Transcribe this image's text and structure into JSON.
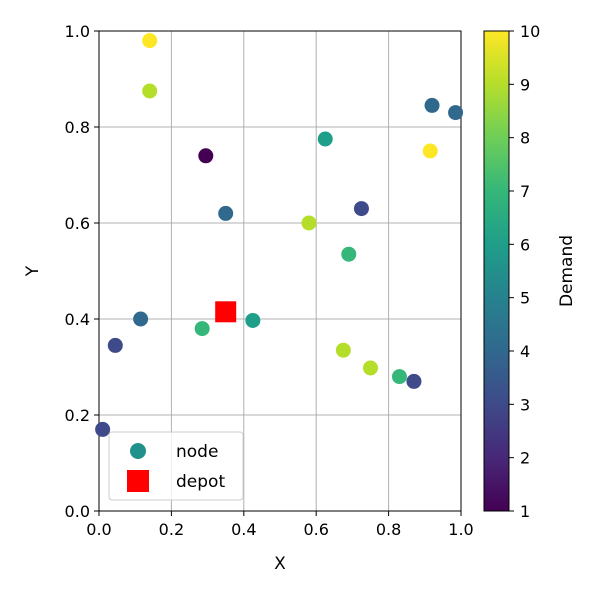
{
  "chart_data": {
    "type": "scatter",
    "title": "",
    "xlabel": "X",
    "ylabel": "Y",
    "xlim": [
      0.0,
      1.0
    ],
    "ylim": [
      0.0,
      1.0
    ],
    "xticks": [
      "0.0",
      "0.2",
      "0.4",
      "0.6",
      "0.8",
      "1.0"
    ],
    "yticks": [
      "0.0",
      "0.2",
      "0.4",
      "0.6",
      "0.8",
      "1.0"
    ],
    "grid": true,
    "legend_position": "lower-left",
    "series": [
      {
        "name": "node",
        "marker": "circle",
        "color_by": "demand",
        "points": [
          {
            "x": 0.14,
            "y": 0.98,
            "demand": 10
          },
          {
            "x": 0.14,
            "y": 0.875,
            "demand": 9
          },
          {
            "x": 0.295,
            "y": 0.74,
            "demand": 1
          },
          {
            "x": 0.35,
            "y": 0.62,
            "demand": 4
          },
          {
            "x": 0.625,
            "y": 0.775,
            "demand": 6
          },
          {
            "x": 0.58,
            "y": 0.6,
            "demand": 9
          },
          {
            "x": 0.725,
            "y": 0.63,
            "demand": 3
          },
          {
            "x": 0.69,
            "y": 0.535,
            "demand": 7
          },
          {
            "x": 0.92,
            "y": 0.845,
            "demand": 4
          },
          {
            "x": 0.985,
            "y": 0.83,
            "demand": 4
          },
          {
            "x": 0.915,
            "y": 0.75,
            "demand": 10
          },
          {
            "x": 0.115,
            "y": 0.4,
            "demand": 4
          },
          {
            "x": 0.045,
            "y": 0.345,
            "demand": 3
          },
          {
            "x": 0.285,
            "y": 0.38,
            "demand": 7
          },
          {
            "x": 0.425,
            "y": 0.397,
            "demand": 6
          },
          {
            "x": 0.675,
            "y": 0.335,
            "demand": 9
          },
          {
            "x": 0.75,
            "y": 0.298,
            "demand": 9
          },
          {
            "x": 0.83,
            "y": 0.28,
            "demand": 7
          },
          {
            "x": 0.87,
            "y": 0.27,
            "demand": 3
          },
          {
            "x": 0.01,
            "y": 0.17,
            "demand": 3
          }
        ]
      },
      {
        "name": "depot",
        "marker": "square",
        "color": "#ff0000",
        "points": [
          {
            "x": 0.35,
            "y": 0.415
          }
        ]
      }
    ],
    "colorbar": {
      "label": "Demand",
      "range": [
        1,
        10
      ],
      "ticks": [
        "1",
        "2",
        "3",
        "4",
        "5",
        "6",
        "7",
        "8",
        "9",
        "10"
      ],
      "colormap": "viridis"
    },
    "legend": {
      "items": [
        {
          "label": "node",
          "color": "#21918c"
        },
        {
          "label": "depot",
          "color": "#ff0000"
        }
      ]
    }
  }
}
